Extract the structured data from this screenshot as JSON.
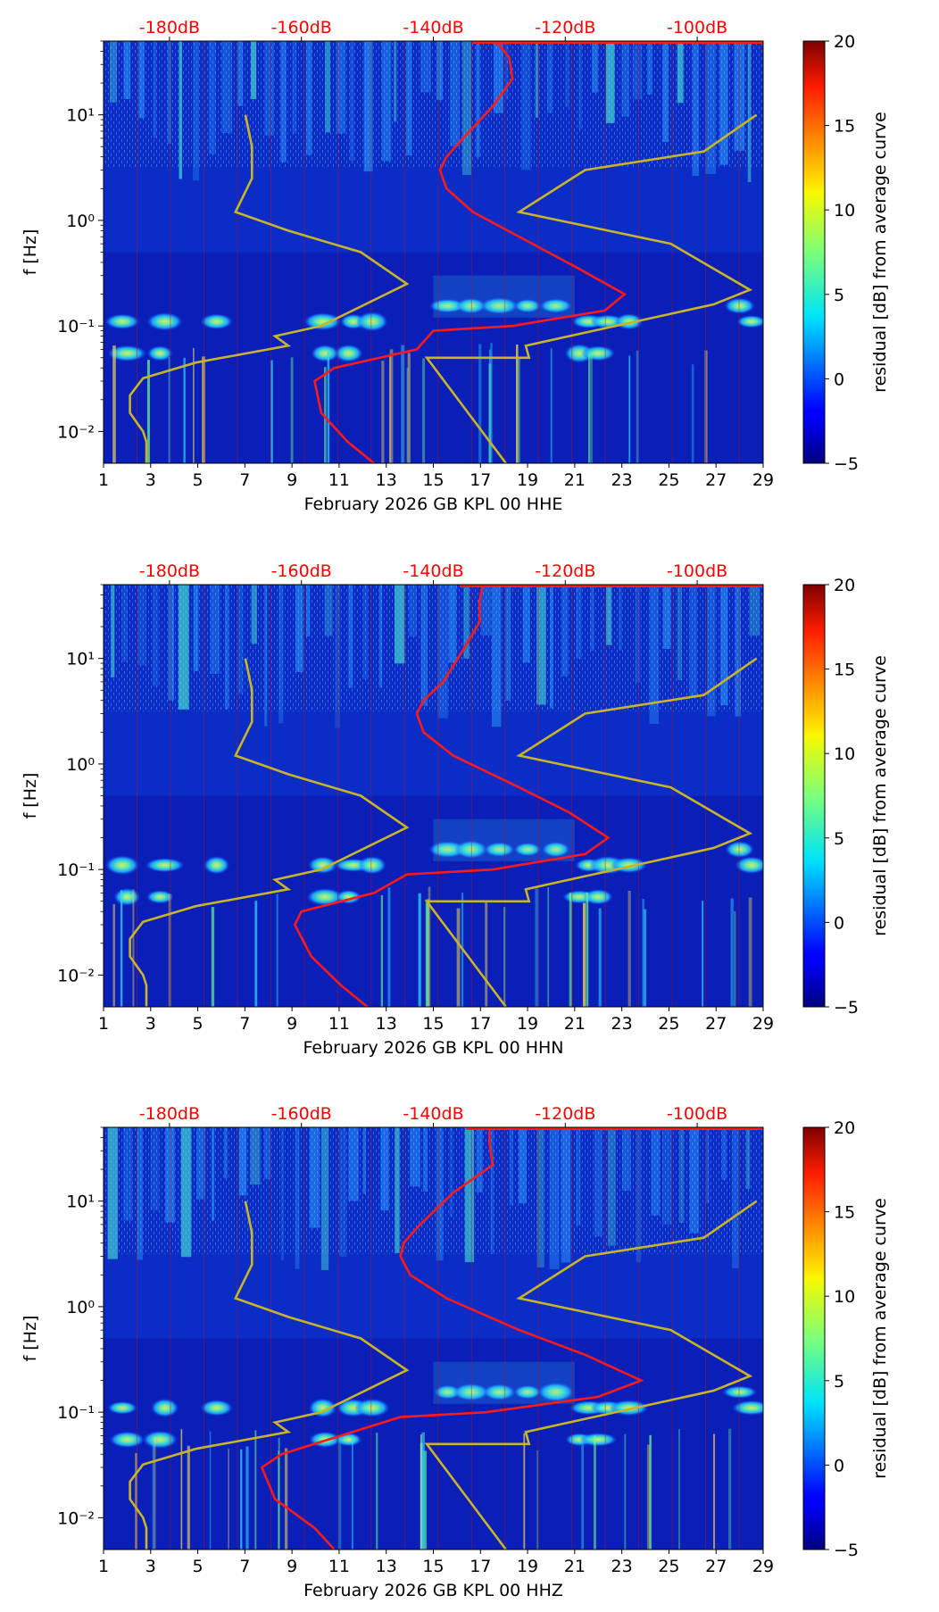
{
  "figure": {
    "colorbar_label": "residual [dB] from average curve",
    "colorbar_ticks": [
      "20",
      "15",
      "10",
      "5",
      "0",
      "−5"
    ],
    "y_axis_label": "f [Hz]",
    "y_ticks": [
      "10¹",
      "10⁰",
      "10⁻¹",
      "10⁻²"
    ],
    "x_ticks": [
      "1",
      "3",
      "5",
      "7",
      "9",
      "11",
      "13",
      "15",
      "17",
      "19",
      "21",
      "23",
      "25",
      "27",
      "29"
    ],
    "db_ticks": [
      "-180dB",
      "-160dB",
      "-140dB",
      "-120dB",
      "-100dB"
    ],
    "colors": {
      "psd_curve": "#ff1a1a",
      "noise_model": "#c8b428",
      "db_label": "#ff0000",
      "background": "#0a1fb8"
    }
  },
  "chart_data": [
    {
      "type": "heatmap",
      "xlabel": "February 2026 GB KPL 00 HHE",
      "ylabel": "f [Hz]",
      "x_range_days": [
        1,
        29
      ],
      "y_range_hz": [
        0.005,
        50
      ],
      "color_range_db": [
        -5,
        20
      ],
      "psd_range_db": [
        -190,
        -90
      ],
      "mean_psd_curve": [
        [
          -130.5,
          50
        ],
        [
          -128.5,
          35
        ],
        [
          -128,
          22
        ],
        [
          -131,
          12
        ],
        [
          -135.5,
          6
        ],
        [
          -138,
          4
        ],
        [
          -139,
          3
        ],
        [
          -138,
          2
        ],
        [
          -134,
          1.2
        ],
        [
          -125,
          0.6
        ],
        [
          -118,
          0.35
        ],
        [
          -111,
          0.2
        ],
        [
          -114,
          0.14
        ],
        [
          -128,
          0.1
        ],
        [
          -140,
          0.09
        ],
        [
          -142.5,
          0.06
        ],
        [
          -155,
          0.04
        ],
        [
          -158,
          0.03
        ],
        [
          -157,
          0.015
        ],
        [
          -153,
          0.008
        ],
        [
          -149,
          0.005
        ]
      ],
      "noise_models": {
        "low": [
          [
            -168.5,
            10
          ],
          [
            -167.5,
            5
          ],
          [
            -167.5,
            2.5
          ],
          [
            -170,
            1.2
          ],
          [
            -162,
            0.8
          ],
          [
            -151,
            0.5
          ],
          [
            -144,
            0.25
          ],
          [
            -157,
            0.1
          ],
          [
            -164,
            0.08
          ],
          [
            -162,
            0.065
          ],
          [
            -176,
            0.045
          ],
          [
            -184,
            0.032
          ],
          [
            -186,
            0.022
          ],
          [
            -186,
            0.015
          ],
          [
            -184,
            0.01
          ],
          [
            -183.5,
            0.008
          ],
          [
            -183.5,
            0.005
          ]
        ],
        "high": [
          [
            -91,
            10
          ],
          [
            -99,
            4.5
          ],
          [
            -117,
            3
          ],
          [
            -127,
            1.2
          ],
          [
            -104,
            0.6
          ],
          [
            -92,
            0.22
          ],
          [
            -97.5,
            0.16
          ],
          [
            -126,
            0.065
          ],
          [
            -125.5,
            0.05
          ],
          [
            -141,
            0.05
          ],
          [
            -129,
            0.005
          ]
        ]
      }
    },
    {
      "type": "heatmap",
      "xlabel": "February 2026 GB KPL 00 HHN",
      "ylabel": "f [Hz]",
      "x_range_days": [
        1,
        29
      ],
      "y_range_hz": [
        0.005,
        50
      ],
      "color_range_db": [
        -5,
        20
      ],
      "psd_range_db": [
        -190,
        -90
      ],
      "mean_psd_curve": [
        [
          -132.5,
          50
        ],
        [
          -133,
          35
        ],
        [
          -133,
          22
        ],
        [
          -135.5,
          12
        ],
        [
          -138.5,
          6
        ],
        [
          -141.5,
          4
        ],
        [
          -142.5,
          3
        ],
        [
          -141.5,
          2
        ],
        [
          -137,
          1.2
        ],
        [
          -127,
          0.6
        ],
        [
          -119.5,
          0.35
        ],
        [
          -113.5,
          0.2
        ],
        [
          -117,
          0.14
        ],
        [
          -131,
          0.1
        ],
        [
          -144,
          0.09
        ],
        [
          -149,
          0.06
        ],
        [
          -160,
          0.04
        ],
        [
          -161,
          0.03
        ],
        [
          -158.5,
          0.015
        ],
        [
          -154,
          0.008
        ],
        [
          -150,
          0.005
        ]
      ],
      "noise_models": {
        "low": [
          [
            -168.5,
            10
          ],
          [
            -167.5,
            5
          ],
          [
            -167.5,
            2.5
          ],
          [
            -170,
            1.2
          ],
          [
            -162,
            0.8
          ],
          [
            -151,
            0.5
          ],
          [
            -144,
            0.25
          ],
          [
            -157,
            0.1
          ],
          [
            -164,
            0.08
          ],
          [
            -162,
            0.065
          ],
          [
            -176,
            0.045
          ],
          [
            -184,
            0.032
          ],
          [
            -186,
            0.022
          ],
          [
            -186,
            0.015
          ],
          [
            -184,
            0.01
          ],
          [
            -183.5,
            0.008
          ],
          [
            -183.5,
            0.005
          ]
        ],
        "high": [
          [
            -91,
            10
          ],
          [
            -99,
            4.5
          ],
          [
            -117,
            3
          ],
          [
            -127,
            1.2
          ],
          [
            -104,
            0.6
          ],
          [
            -92,
            0.22
          ],
          [
            -97.5,
            0.16
          ],
          [
            -126,
            0.065
          ],
          [
            -125.5,
            0.05
          ],
          [
            -141,
            0.05
          ],
          [
            -129,
            0.005
          ]
        ]
      }
    },
    {
      "type": "heatmap",
      "xlabel": "February 2026 GB KPL 00 HHZ",
      "ylabel": "f [Hz]",
      "x_range_days": [
        1,
        29
      ],
      "y_range_hz": [
        0.005,
        50
      ],
      "color_range_db": [
        -5,
        20
      ],
      "psd_range_db": [
        -190,
        -90
      ],
      "mean_psd_curve": [
        [
          -131.5,
          50
        ],
        [
          -131.5,
          35
        ],
        [
          -131,
          22
        ],
        [
          -137,
          12
        ],
        [
          -142,
          6
        ],
        [
          -144.5,
          4
        ],
        [
          -145,
          3
        ],
        [
          -143.5,
          2
        ],
        [
          -138,
          1.2
        ],
        [
          -127,
          0.6
        ],
        [
          -117,
          0.35
        ],
        [
          -108.5,
          0.2
        ],
        [
          -115,
          0.14
        ],
        [
          -132,
          0.1
        ],
        [
          -145,
          0.09
        ],
        [
          -154,
          0.06
        ],
        [
          -163,
          0.04
        ],
        [
          -166,
          0.03
        ],
        [
          -164,
          0.015
        ],
        [
          -158,
          0.008
        ],
        [
          -155,
          0.005
        ]
      ],
      "noise_models": {
        "low": [
          [
            -168.5,
            10
          ],
          [
            -167.5,
            5
          ],
          [
            -167.5,
            2.5
          ],
          [
            -170,
            1.2
          ],
          [
            -162,
            0.8
          ],
          [
            -151,
            0.5
          ],
          [
            -144,
            0.25
          ],
          [
            -157,
            0.1
          ],
          [
            -164,
            0.08
          ],
          [
            -162,
            0.065
          ],
          [
            -176,
            0.045
          ],
          [
            -184,
            0.032
          ],
          [
            -186,
            0.022
          ],
          [
            -186,
            0.015
          ],
          [
            -184,
            0.01
          ],
          [
            -183.5,
            0.008
          ],
          [
            -183.5,
            0.005
          ]
        ],
        "high": [
          [
            -91,
            10
          ],
          [
            -99,
            4.5
          ],
          [
            -117,
            3
          ],
          [
            -127,
            1.2
          ],
          [
            -104,
            0.6
          ],
          [
            -92,
            0.22
          ],
          [
            -97.5,
            0.16
          ],
          [
            -126,
            0.065
          ],
          [
            -125.5,
            0.05
          ],
          [
            -141,
            0.05
          ],
          [
            -129,
            0.005
          ]
        ]
      }
    }
  ]
}
